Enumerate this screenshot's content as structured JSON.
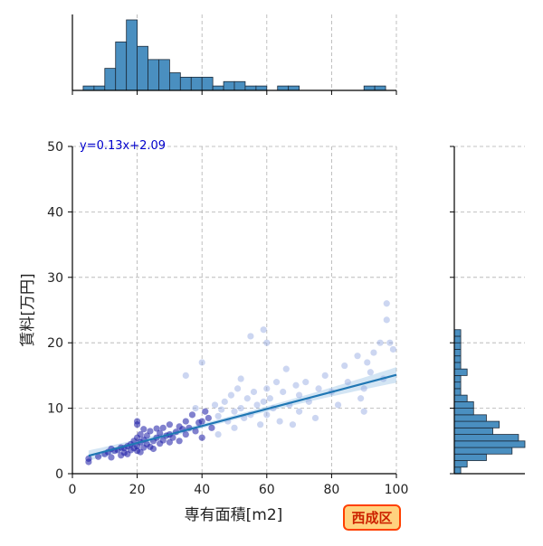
{
  "chart_data": {
    "type": "scatter",
    "title": "",
    "xlabel": "専有面積[m2]",
    "ylabel": "賃料[万円]",
    "xlim": [
      0,
      100
    ],
    "ylim": [
      0,
      50
    ],
    "x_ticks": [
      0,
      20,
      40,
      60,
      80,
      100
    ],
    "y_ticks": [
      0,
      10,
      20,
      30,
      40,
      50
    ],
    "grid": true,
    "equation_label": "y=0.13x+2.09",
    "region_badge": "西成区",
    "regression": {
      "slope": 0.13,
      "intercept": 2.09,
      "x_range": [
        5,
        100
      ]
    },
    "points": [
      [
        5,
        1.8
      ],
      [
        5,
        2.3
      ],
      [
        8,
        2.6
      ],
      [
        10,
        3.0
      ],
      [
        11,
        3.3
      ],
      [
        12,
        2.5
      ],
      [
        12,
        3.8
      ],
      [
        13,
        3.5
      ],
      [
        14,
        3.6
      ],
      [
        15,
        2.8
      ],
      [
        15,
        4.0
      ],
      [
        16,
        3.2
      ],
      [
        16,
        3.9
      ],
      [
        17,
        4.2
      ],
      [
        17,
        3.0
      ],
      [
        18,
        3.6
      ],
      [
        18,
        4.5
      ],
      [
        19,
        3.9
      ],
      [
        19,
        5.0
      ],
      [
        20,
        3.5
      ],
      [
        20,
        4.2
      ],
      [
        20,
        5.5
      ],
      [
        20,
        7.5
      ],
      [
        20,
        8.0
      ],
      [
        21,
        3.3
      ],
      [
        21,
        4.8
      ],
      [
        21,
        6.0
      ],
      [
        22,
        4.0
      ],
      [
        22,
        5.2
      ],
      [
        22,
        6.8
      ],
      [
        23,
        4.5
      ],
      [
        23,
        5.8
      ],
      [
        24,
        4.1
      ],
      [
        24,
        6.5
      ],
      [
        25,
        5.0
      ],
      [
        25,
        3.8
      ],
      [
        26,
        5.5
      ],
      [
        26,
        6.9
      ],
      [
        27,
        4.6
      ],
      [
        27,
        6.2
      ],
      [
        28,
        5.1
      ],
      [
        28,
        7.0
      ],
      [
        29,
        5.8
      ],
      [
        30,
        6.0
      ],
      [
        30,
        4.8
      ],
      [
        30,
        7.5
      ],
      [
        31,
        5.5
      ],
      [
        32,
        6.4
      ],
      [
        33,
        7.2
      ],
      [
        33,
        5.0
      ],
      [
        34,
        6.8
      ],
      [
        35,
        6.0
      ],
      [
        35,
        8.0
      ],
      [
        35,
        15.0
      ],
      [
        36,
        7.0
      ],
      [
        37,
        9.0
      ],
      [
        38,
        6.5
      ],
      [
        38,
        10.0
      ],
      [
        39,
        7.8
      ],
      [
        40,
        8.0
      ],
      [
        40,
        5.5
      ],
      [
        40,
        17.0
      ],
      [
        41,
        9.5
      ],
      [
        42,
        8.5
      ],
      [
        43,
        7.0
      ],
      [
        44,
        10.5
      ],
      [
        45,
        8.8
      ],
      [
        45,
        6.0
      ],
      [
        46,
        9.8
      ],
      [
        47,
        11.0
      ],
      [
        48,
        8.0
      ],
      [
        49,
        12.0
      ],
      [
        50,
        9.5
      ],
      [
        50,
        7.0
      ],
      [
        51,
        13.0
      ],
      [
        52,
        10.0
      ],
      [
        52,
        14.5
      ],
      [
        53,
        8.5
      ],
      [
        54,
        11.5
      ],
      [
        55,
        9.0
      ],
      [
        55,
        21.0
      ],
      [
        56,
        12.5
      ],
      [
        57,
        10.5
      ],
      [
        58,
        7.5
      ],
      [
        59,
        11.0
      ],
      [
        59,
        22.0
      ],
      [
        60,
        13.0
      ],
      [
        60,
        20.0
      ],
      [
        60,
        9.0
      ],
      [
        61,
        11.5
      ],
      [
        62,
        10.0
      ],
      [
        63,
        14.0
      ],
      [
        64,
        8.0
      ],
      [
        65,
        12.5
      ],
      [
        66,
        16.0
      ],
      [
        67,
        10.5
      ],
      [
        68,
        7.5
      ],
      [
        69,
        13.5
      ],
      [
        70,
        9.5
      ],
      [
        70,
        12.0
      ],
      [
        72,
        14.0
      ],
      [
        73,
        11.0
      ],
      [
        75,
        8.5
      ],
      [
        76,
        13.0
      ],
      [
        78,
        15.0
      ],
      [
        80,
        12.5
      ],
      [
        82,
        10.5
      ],
      [
        84,
        16.5
      ],
      [
        85,
        14.0
      ],
      [
        88,
        18.0
      ],
      [
        89,
        11.5
      ],
      [
        90,
        9.5
      ],
      [
        90,
        13.0
      ],
      [
        91,
        17.0
      ],
      [
        92,
        15.5
      ],
      [
        93,
        18.5
      ],
      [
        95,
        20.0
      ],
      [
        96,
        14.5
      ],
      [
        97,
        26.0
      ],
      [
        97,
        23.5
      ],
      [
        98,
        20.0
      ],
      [
        99,
        19.0
      ]
    ],
    "x_histogram": {
      "bin_edges": [
        0,
        3.33,
        6.67,
        10,
        13.33,
        16.67,
        20,
        23.33,
        26.67,
        30,
        33.33,
        36.67,
        40,
        43.33,
        46.67,
        50,
        53.33,
        56.67,
        60,
        63.33,
        66.67,
        70,
        73.33,
        76.67,
        80,
        83.33,
        86.67,
        90,
        93.33,
        96.67,
        100
      ],
      "counts": [
        0,
        1,
        1,
        5,
        11,
        16,
        10,
        7,
        7,
        4,
        3,
        3,
        3,
        1,
        2,
        2,
        1,
        1,
        0,
        1,
        1,
        0,
        0,
        0,
        0,
        0,
        0,
        1,
        1,
        0
      ]
    },
    "y_histogram": {
      "bin_edges": [
        0,
        1,
        2,
        3,
        4,
        5,
        6,
        7,
        8,
        9,
        10,
        11,
        12,
        13,
        14,
        15,
        16,
        17,
        18,
        19,
        20,
        21,
        22,
        23,
        24,
        25,
        26,
        27,
        28,
        29,
        30,
        31,
        32,
        33,
        34,
        35,
        36,
        37,
        38,
        39,
        40,
        41,
        42,
        43,
        44,
        45,
        46,
        47,
        48,
        49,
        50
      ],
      "counts": [
        1,
        2,
        5,
        9,
        11,
        10,
        6,
        7,
        5,
        3,
        3,
        2,
        1,
        1,
        1,
        2,
        1,
        1,
        1,
        1,
        1,
        1,
        0,
        0,
        0,
        0,
        0,
        0,
        0,
        0,
        0,
        0,
        0,
        0,
        0,
        0,
        0,
        0,
        0,
        0,
        0,
        0,
        0,
        0,
        0,
        0,
        0,
        0,
        0,
        0
      ]
    },
    "colors": {
      "regression": "#1f77b4",
      "confidence_band": "#9ec5e6",
      "hist_fill": "#4a8fc0",
      "hist_edge": "#1c2b3a",
      "point_dark": "#1a1aa6",
      "point_light": "#8fa3e0",
      "equation": "#0000cc",
      "grid": "#b0b0b0",
      "badge_fill": "#ffd27f",
      "badge_border": "#ff4000",
      "badge_text": "#cc2200"
    }
  }
}
